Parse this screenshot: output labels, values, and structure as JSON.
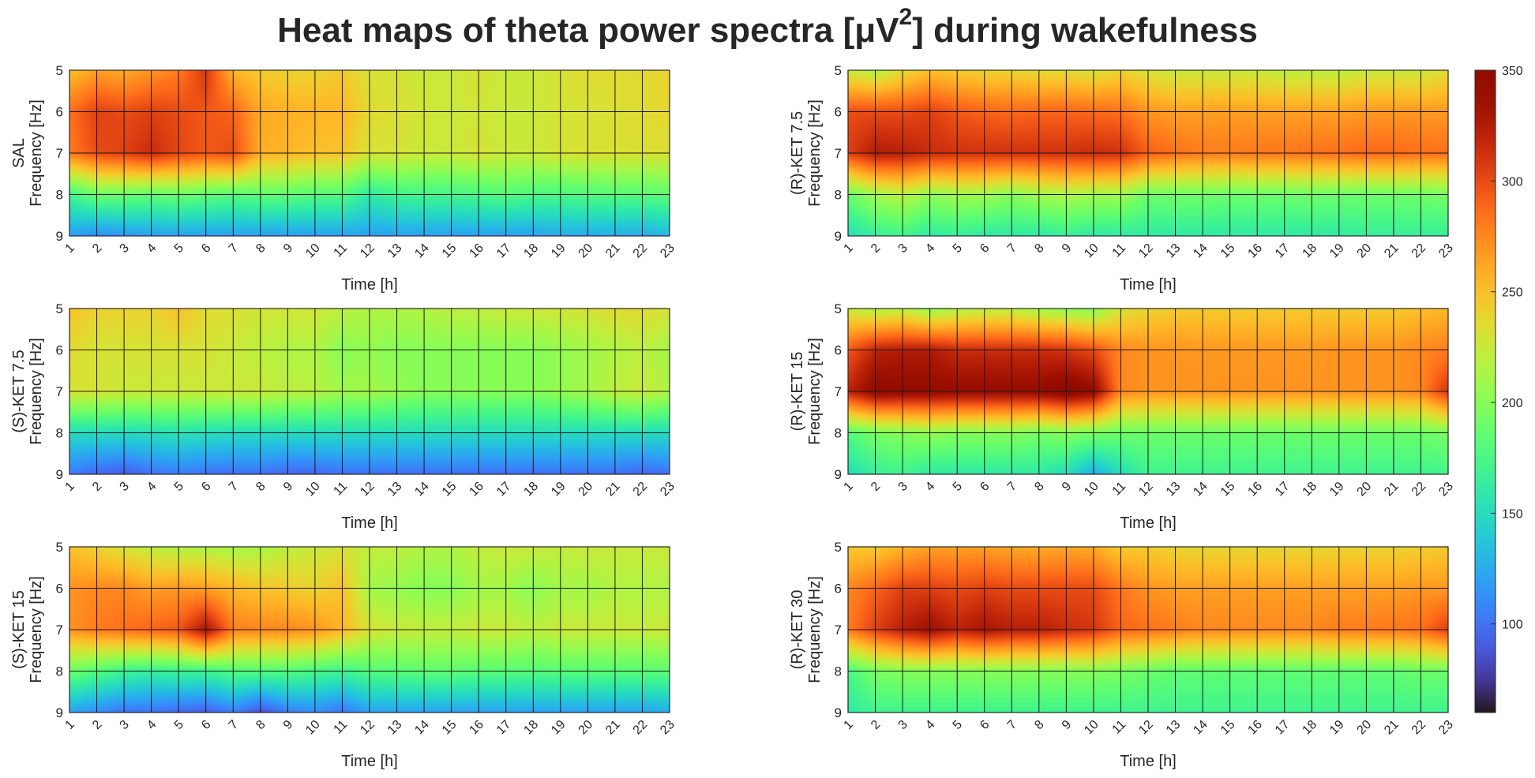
{
  "figure_title": {
    "main": "Heat maps of theta power spectra [μV",
    "superscript": "2",
    "suffix": "] during wakefulness"
  },
  "chart_data": {
    "type": "heatmap",
    "colormap": "turbo",
    "colorbar": {
      "min": 60,
      "max": 350,
      "ticks": [
        100,
        150,
        200,
        250,
        300,
        350
      ]
    },
    "x_ticks": [
      "1",
      "2",
      "3",
      "4",
      "5",
      "6",
      "7",
      "8",
      "9",
      "10",
      "11",
      "12",
      "13",
      "14",
      "15",
      "16",
      "17",
      "18",
      "19",
      "20",
      "21",
      "22",
      "23"
    ],
    "y_ticks": [
      "5",
      "6",
      "7",
      "8",
      "9"
    ],
    "x_range": [
      1,
      23
    ],
    "y_range": [
      5,
      9
    ],
    "grid": true,
    "panels": [
      {
        "ylabel_group": "SAL",
        "ylabel_axis": "Frequency [Hz]",
        "xlabel": "Time [h]",
        "rows_freq": [
          5,
          6,
          7,
          8,
          9
        ],
        "values": [
          [
            250,
            265,
            260,
            270,
            280,
            310,
            255,
            245,
            240,
            240,
            245,
            230,
            230,
            225,
            225,
            230,
            225,
            225,
            230,
            235,
            235,
            235,
            240
          ],
          [
            285,
            305,
            300,
            305,
            300,
            295,
            290,
            260,
            258,
            256,
            255,
            235,
            232,
            228,
            225,
            228,
            225,
            225,
            230,
            230,
            232,
            235,
            238
          ],
          [
            280,
            300,
            305,
            315,
            302,
            295,
            300,
            258,
            255,
            250,
            248,
            230,
            230,
            225,
            225,
            230,
            225,
            225,
            230,
            232,
            232,
            232,
            232
          ],
          [
            170,
            190,
            190,
            185,
            190,
            185,
            180,
            185,
            185,
            180,
            180,
            160,
            170,
            172,
            172,
            175,
            180,
            175,
            175,
            178,
            180,
            180,
            185
          ],
          [
            120,
            110,
            115,
            120,
            120,
            120,
            120,
            120,
            120,
            120,
            120,
            120,
            120,
            120,
            120,
            120,
            120,
            120,
            125,
            125,
            125,
            125,
            130
          ]
        ]
      },
      {
        "ylabel_group": "(R)-KET 7.5",
        "ylabel_axis": "Frequency [Hz]",
        "xlabel": "Time [h]",
        "rows_freq": [
          5,
          6,
          7,
          8,
          9
        ],
        "values": [
          [
            225,
            215,
            235,
            250,
            245,
            240,
            240,
            235,
            235,
            230,
            240,
            230,
            225,
            225,
            225,
            225,
            220,
            220,
            220,
            225,
            225,
            225,
            235
          ],
          [
            300,
            300,
            300,
            305,
            295,
            290,
            288,
            290,
            290,
            288,
            285,
            270,
            265,
            265,
            265,
            265,
            265,
            265,
            265,
            268,
            268,
            268,
            268
          ],
          [
            305,
            325,
            322,
            315,
            312,
            312,
            312,
            312,
            312,
            315,
            312,
            292,
            285,
            280,
            280,
            282,
            282,
            285,
            285,
            288,
            288,
            285,
            285
          ],
          [
            190,
            210,
            220,
            205,
            210,
            210,
            200,
            210,
            215,
            210,
            210,
            190,
            192,
            192,
            190,
            190,
            190,
            192,
            190,
            190,
            190,
            192,
            195
          ],
          [
            150,
            165,
            170,
            160,
            165,
            160,
            160,
            160,
            165,
            160,
            160,
            160,
            160,
            160,
            160,
            160,
            160,
            160,
            160,
            165,
            165,
            165,
            165
          ]
        ]
      },
      {
        "ylabel_group": "(S)-KET 7.5",
        "ylabel_axis": "Frequency [Hz]",
        "xlabel": "Time [h]",
        "rows_freq": [
          5,
          6,
          7,
          8,
          9
        ],
        "values": [
          [
            250,
            240,
            240,
            240,
            250,
            235,
            232,
            228,
            228,
            228,
            220,
            215,
            215,
            215,
            220,
            220,
            225,
            225,
            228,
            230,
            235,
            235,
            230
          ],
          [
            235,
            230,
            230,
            230,
            230,
            230,
            225,
            220,
            215,
            215,
            200,
            205,
            200,
            200,
            200,
            200,
            200,
            200,
            205,
            210,
            215,
            220,
            210
          ],
          [
            230,
            230,
            225,
            225,
            225,
            225,
            225,
            225,
            220,
            218,
            210,
            210,
            205,
            200,
            200,
            200,
            200,
            200,
            205,
            210,
            220,
            225,
            215
          ],
          [
            150,
            150,
            150,
            152,
            155,
            152,
            150,
            150,
            150,
            150,
            150,
            150,
            150,
            150,
            150,
            150,
            150,
            150,
            150,
            150,
            150,
            150,
            150
          ],
          [
            105,
            95,
            90,
            100,
            105,
            100,
            100,
            100,
            95,
            95,
            100,
            100,
            100,
            100,
            100,
            100,
            100,
            100,
            100,
            100,
            100,
            95,
            100
          ]
        ]
      },
      {
        "ylabel_group": "(R)-KET 15",
        "ylabel_axis": "Frequency [Hz]",
        "xlabel": "Time [h]",
        "rows_freq": [
          5,
          6,
          7,
          8,
          9
        ],
        "values": [
          [
            225,
            215,
            220,
            205,
            215,
            220,
            220,
            210,
            205,
            200,
            230,
            240,
            245,
            245,
            245,
            245,
            245,
            245,
            245,
            245,
            245,
            250,
            255
          ],
          [
            295,
            320,
            325,
            325,
            315,
            315,
            315,
            315,
            310,
            300,
            275,
            270,
            270,
            268,
            268,
            268,
            268,
            268,
            270,
            270,
            270,
            275,
            280
          ],
          [
            320,
            345,
            342,
            342,
            340,
            340,
            340,
            340,
            352,
            342,
            275,
            270,
            270,
            270,
            270,
            270,
            270,
            270,
            270,
            270,
            270,
            275,
            310
          ],
          [
            180,
            195,
            200,
            205,
            200,
            200,
            200,
            195,
            200,
            195,
            190,
            190,
            190,
            190,
            190,
            190,
            190,
            190,
            190,
            190,
            190,
            190,
            195
          ],
          [
            150,
            165,
            170,
            160,
            160,
            160,
            160,
            160,
            150,
            125,
            150,
            170,
            170,
            170,
            170,
            170,
            170,
            170,
            170,
            170,
            170,
            170,
            172
          ]
        ]
      },
      {
        "ylabel_group": "(S)-KET 15",
        "ylabel_axis": "Frequency [Hz]",
        "xlabel": "Time [h]",
        "rows_freq": [
          5,
          6,
          7,
          8,
          9
        ],
        "values": [
          [
            250,
            240,
            230,
            220,
            215,
            215,
            212,
            212,
            220,
            225,
            230,
            222,
            222,
            215,
            215,
            222,
            225,
            225,
            222,
            225,
            225,
            225,
            225
          ],
          [
            270,
            275,
            275,
            265,
            268,
            265,
            255,
            248,
            245,
            240,
            250,
            210,
            205,
            200,
            200,
            210,
            210,
            200,
            210,
            210,
            215,
            215,
            215
          ],
          [
            270,
            280,
            285,
            290,
            295,
            330,
            280,
            275,
            275,
            270,
            255,
            230,
            225,
            222,
            222,
            225,
            225,
            220,
            225,
            225,
            225,
            225,
            225
          ],
          [
            190,
            180,
            170,
            165,
            170,
            170,
            180,
            180,
            180,
            175,
            170,
            180,
            182,
            185,
            185,
            182,
            182,
            180,
            182,
            182,
            182,
            182,
            185
          ],
          [
            120,
            110,
            100,
            100,
            95,
            90,
            105,
            85,
            105,
            110,
            100,
            120,
            120,
            120,
            120,
            120,
            120,
            120,
            120,
            120,
            120,
            120,
            125
          ]
        ]
      },
      {
        "ylabel_group": "(R)-KET 30",
        "ylabel_axis": "Frequency [Hz]",
        "xlabel": "Time [h]",
        "rows_freq": [
          5,
          6,
          7,
          8,
          9
        ],
        "values": [
          [
            245,
            245,
            255,
            265,
            265,
            265,
            262,
            260,
            262,
            260,
            245,
            245,
            240,
            238,
            238,
            238,
            238,
            238,
            240,
            240,
            240,
            242,
            245
          ],
          [
            275,
            290,
            305,
            305,
            300,
            305,
            300,
            300,
            300,
            300,
            282,
            270,
            265,
            265,
            265,
            265,
            265,
            265,
            265,
            265,
            265,
            268,
            268
          ],
          [
            280,
            305,
            322,
            335,
            320,
            330,
            322,
            322,
            315,
            310,
            290,
            285,
            280,
            275,
            275,
            275,
            275,
            275,
            280,
            280,
            282,
            285,
            305
          ],
          [
            175,
            195,
            200,
            200,
            200,
            200,
            200,
            200,
            200,
            200,
            195,
            190,
            185,
            185,
            185,
            185,
            185,
            185,
            185,
            185,
            185,
            190,
            190
          ],
          [
            160,
            170,
            170,
            170,
            170,
            170,
            170,
            170,
            170,
            170,
            170,
            170,
            170,
            170,
            170,
            170,
            170,
            170,
            170,
            170,
            170,
            170,
            170
          ]
        ]
      }
    ]
  }
}
